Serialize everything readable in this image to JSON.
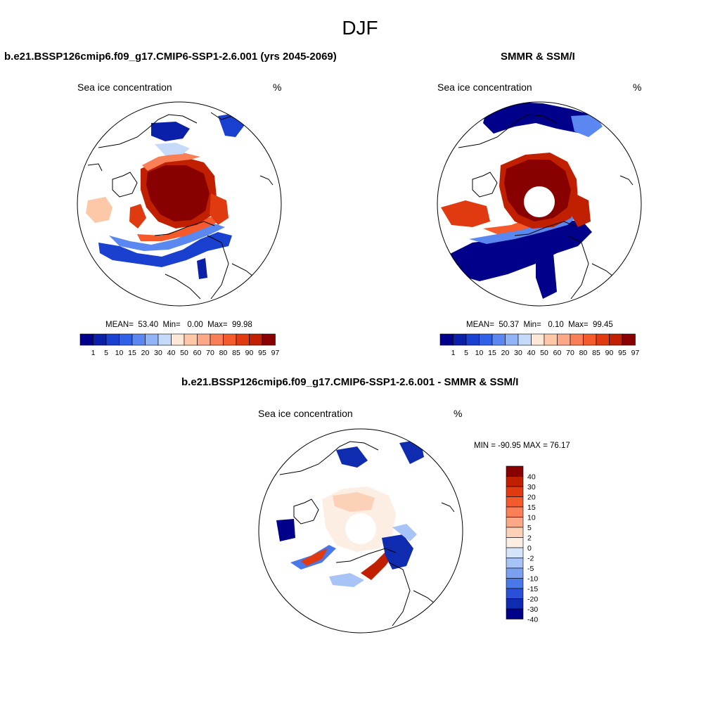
{
  "figure": {
    "season": "DJF"
  },
  "panels": [
    {
      "title": "b.e21.BSSP126cmip6.f09_g17.CMIP6-SSP1-2.6.001 (yrs 2045-2069)",
      "left_label": "Sea ice concentration",
      "right_label": "%",
      "stats": {
        "mean_label": "MEAN=",
        "mean": "53.40",
        "min_label": "Min=",
        "min": "0.00",
        "max_label": "Max=",
        "max": "99.98"
      }
    },
    {
      "title": "SMMR & SSM/I",
      "left_label": "Sea ice concentration",
      "right_label": "%",
      "stats": {
        "mean_label": "MEAN=",
        "mean": "50.37",
        "min_label": "Min=",
        "min": "0.10",
        "max_label": "Max=",
        "max": "99.45"
      }
    },
    {
      "title": "b.e21.BSSP126cmip6.f09_g17.CMIP6-SSP1-2.6.001 - SMMR & SSM/I",
      "left_label": "Sea ice concentration",
      "right_label": "%",
      "minmax": "MIN = -90.95 MAX =  76.17"
    }
  ],
  "colorbar_conc": {
    "colors": [
      "#00008b",
      "#0a20a8",
      "#1a40d0",
      "#3060e6",
      "#5a88f0",
      "#90b4f6",
      "#c4daf8",
      "#fde8d8",
      "#fcc8a8",
      "#fca888",
      "#fa7e56",
      "#f45a2c",
      "#e03a10",
      "#c02000",
      "#880000"
    ],
    "labels": [
      "1",
      "5",
      "10",
      "15",
      "20",
      "30",
      "40",
      "50",
      "60",
      "70",
      "80",
      "85",
      "90",
      "95",
      "97"
    ]
  },
  "colorbar_diff": {
    "colors": [
      "#880000",
      "#c02000",
      "#e03a10",
      "#f45a2c",
      "#fa7e56",
      "#fca888",
      "#fdd0b8",
      "#fdeee4",
      "#d4e4fa",
      "#a8c4f6",
      "#7aa0f0",
      "#4a78ea",
      "#2a50d8",
      "#0f2cb0",
      "#00008b"
    ],
    "labels": [
      "40",
      "30",
      "20",
      "15",
      "10",
      "5",
      "2",
      "0",
      "-2",
      "-5",
      "-10",
      "-15",
      "-20",
      "-30",
      "-40"
    ]
  }
}
